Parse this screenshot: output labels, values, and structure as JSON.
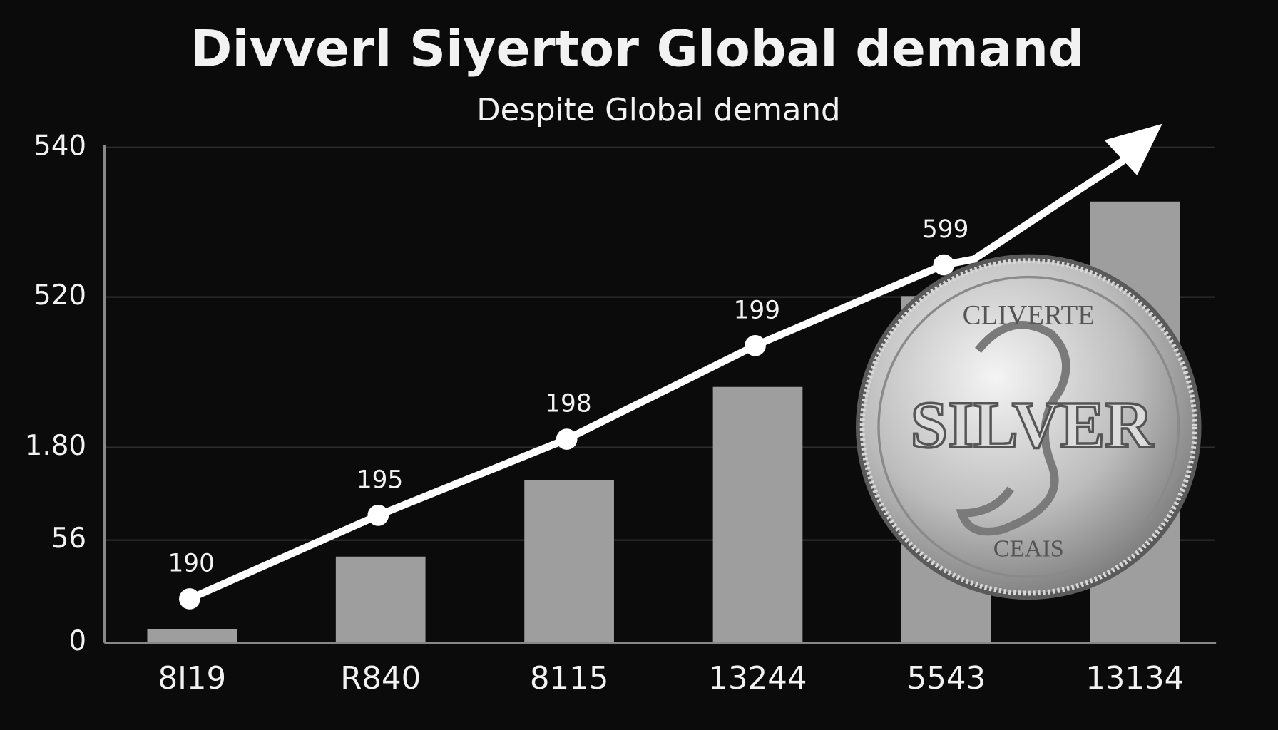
{
  "chart_data": {
    "type": "bar",
    "title": "Divverl Siyertor Global demand",
    "subtitle": "Despite Global demand",
    "categories": [
      "8I19",
      "R840",
      "8115",
      "13244",
      "5543",
      "13134"
    ],
    "values": [
      15,
      94,
      177,
      279,
      378,
      481
    ],
    "color": "#9e9e9e",
    "line": {
      "color": "#ffffff",
      "values": [
        48,
        139,
        222,
        324,
        412,
        null
      ]
    },
    "annotations": [
      "190",
      "195",
      "198",
      "199",
      "599"
    ],
    "ylim": [
      0,
      540
    ],
    "yticks": [
      0,
      {
        "value": 112,
        "label": "56"
      },
      {
        "value": 213,
        "label": "1.80"
      },
      {
        "value": 377,
        "label": "520"
      },
      540
    ],
    "grid": true,
    "coin_labels": [
      "CLIVERTE",
      "SILVER",
      "CEAIS"
    ]
  }
}
